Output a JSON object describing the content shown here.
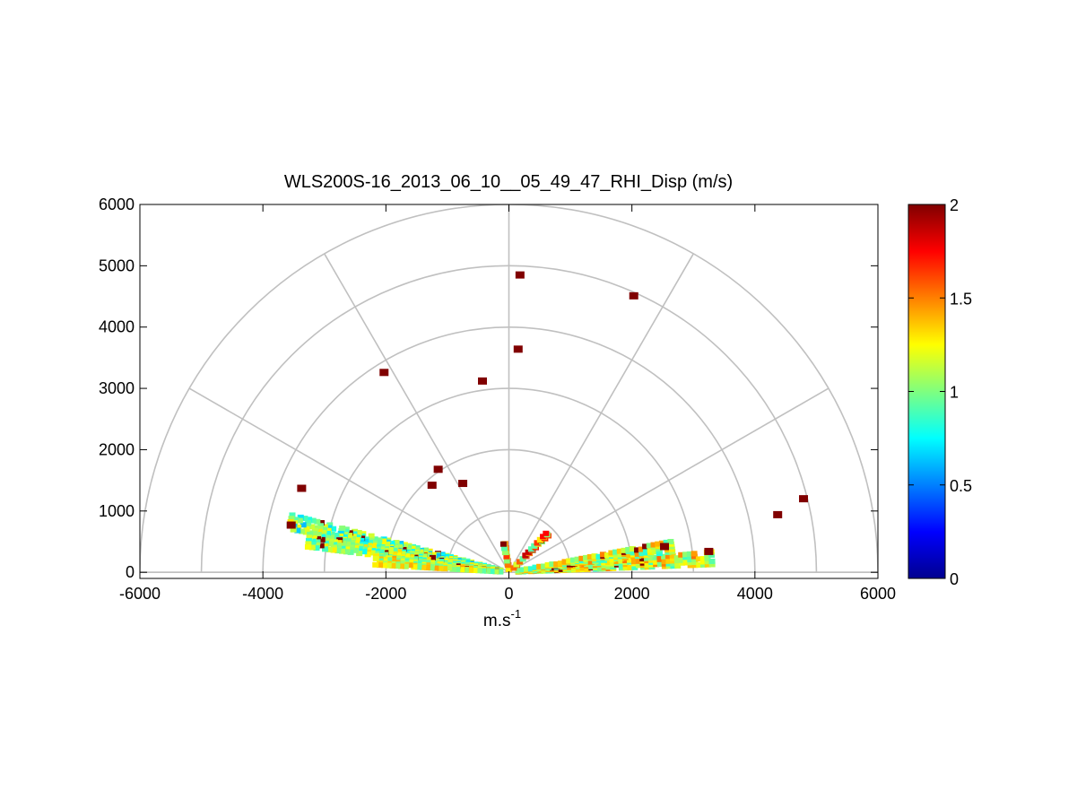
{
  "chart_data": {
    "type": "scatter",
    "subtype": "polar-rhi-scan",
    "title": "WLS200S-16_2013_06_10__05_49_47_RHI_Disp (m/s)",
    "xlabel": "m.s",
    "xlabel_superscript": "-1",
    "ylabel": "",
    "xlim": [
      -6000,
      6000
    ],
    "ylim": [
      -100,
      6000
    ],
    "xticks": [
      -6000,
      -4000,
      -2000,
      0,
      2000,
      4000,
      6000
    ],
    "xtick_labels": [
      "-6000",
      "-4000",
      "-2000",
      "0",
      "2000",
      "4000",
      "6000"
    ],
    "yticks": [
      0,
      1000,
      2000,
      3000,
      4000,
      5000,
      6000
    ],
    "ytick_labels": [
      "0",
      "1000",
      "2000",
      "3000",
      "4000",
      "5000",
      "6000"
    ],
    "polar_grid": {
      "radii": [
        1000,
        2000,
        3000,
        4000,
        5000,
        6000
      ],
      "spoke_angles_deg": [
        0,
        30,
        60,
        90,
        120,
        150,
        180
      ]
    },
    "colorbar": {
      "min": 0,
      "max": 2,
      "ticks": [
        0,
        0.5,
        1,
        1.5,
        2
      ],
      "tick_labels": [
        "0",
        "0.5",
        "1",
        "1.5",
        "2"
      ],
      "colormap": "jet"
    },
    "isolated_points": [
      {
        "x": 180,
        "y": 4850,
        "value": 2
      },
      {
        "x": 2030,
        "y": 4510,
        "value": 2
      },
      {
        "x": 150,
        "y": 3640,
        "value": 2
      },
      {
        "x": -2030,
        "y": 3260,
        "value": 2
      },
      {
        "x": -430,
        "y": 3120,
        "value": 2
      },
      {
        "x": -3370,
        "y": 1370,
        "value": 2
      },
      {
        "x": -3540,
        "y": 770,
        "value": 2
      },
      {
        "x": 4370,
        "y": 940,
        "value": 2
      },
      {
        "x": 4790,
        "y": 1200,
        "value": 2
      },
      {
        "x": 2530,
        "y": 420,
        "value": 2
      },
      {
        "x": 3250,
        "y": 340,
        "value": 2
      },
      {
        "x": -1150,
        "y": 1680,
        "value": 2
      },
      {
        "x": -1250,
        "y": 1420,
        "value": 2
      },
      {
        "x": -750,
        "y": 1450,
        "value": 2
      }
    ],
    "beams": [
      {
        "label": "left-upper",
        "angle_deg": 167,
        "r_start": 150,
        "r_end": 3650,
        "mean_value": 0.95,
        "spread": 0.35
      },
      {
        "label": "left-mid",
        "angle_deg": 171,
        "r_start": 150,
        "r_end": 3300,
        "mean_value": 1.05,
        "spread": 0.3
      },
      {
        "label": "left-lower",
        "angle_deg": 175,
        "r_start": 150,
        "r_end": 2200,
        "mean_value": 1.15,
        "spread": 0.3
      },
      {
        "label": "right-lower",
        "angle_deg": 4,
        "r_start": 150,
        "r_end": 3300,
        "mean_value": 1.2,
        "spread": 0.35
      },
      {
        "label": "right-upper",
        "angle_deg": 9,
        "r_start": 150,
        "r_end": 2700,
        "mean_value": 1.15,
        "spread": 0.35
      },
      {
        "label": "center-low",
        "angle_deg": 100,
        "r_start": 50,
        "r_end": 500,
        "mean_value": 1.3,
        "spread": 0.5
      },
      {
        "label": "center-right",
        "angle_deg": 45,
        "r_start": 100,
        "r_end": 900,
        "mean_value": 1.4,
        "spread": 0.5
      }
    ]
  }
}
